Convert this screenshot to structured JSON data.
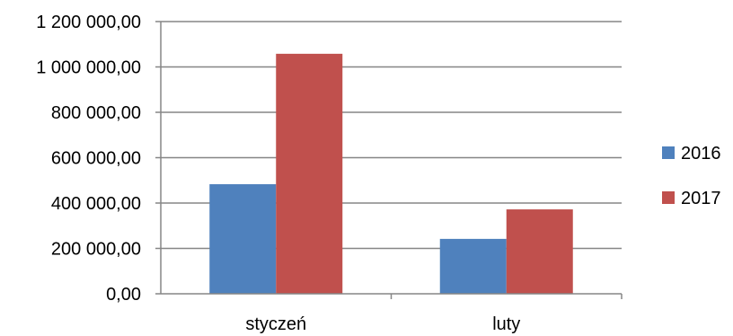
{
  "chart_data": {
    "type": "bar",
    "title": "",
    "xlabel": "",
    "ylabel": "",
    "categories": [
      "styczeń",
      "luty"
    ],
    "series": [
      {
        "name": "2016",
        "color": "#4F81BD",
        "values": [
          483000,
          242000
        ]
      },
      {
        "name": "2017",
        "color": "#C0504D",
        "values": [
          1058000,
          372000
        ]
      }
    ],
    "ylim": [
      0,
      1200000
    ],
    "yticks": [
      0,
      200000,
      400000,
      600000,
      800000,
      1000000,
      1200000
    ],
    "ytick_labels": [
      "0,00",
      "200 000,00",
      "400 000,00",
      "600 000,00",
      "800 000,00",
      "1 000 000,00",
      "1 200 000,00"
    ],
    "grid": true,
    "legend_position": "right"
  }
}
